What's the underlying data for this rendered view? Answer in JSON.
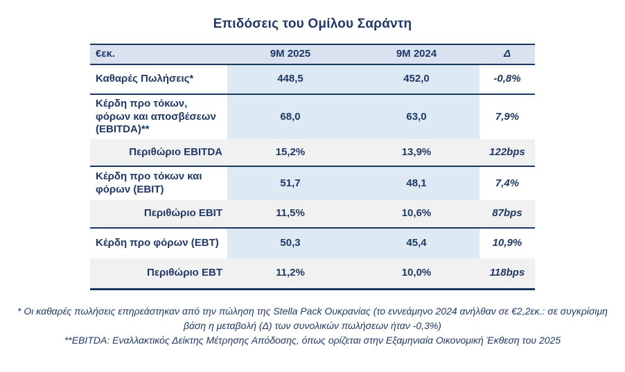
{
  "title": "Επιδόσεις του Ομίλου Σαράντη",
  "table": {
    "columns": [
      "€εκ.",
      "9M 2025",
      "9M 2024",
      "Δ"
    ],
    "rows": [
      {
        "label": "Καθαρές Πωλήσεις*",
        "v2025": "448,5",
        "v2024": "452,0",
        "delta": "-0,8%",
        "type": "data"
      },
      {
        "label": "Κέρδη προ τόκων, φόρων και αποσβέσεων (EBITDA)**",
        "v2025": "68,0",
        "v2024": "63,0",
        "delta": "7,9%",
        "type": "data"
      },
      {
        "label": "Περιθώριο EBITDA",
        "v2025": "15,2%",
        "v2024": "13,9%",
        "delta": "122bps",
        "type": "margin"
      },
      {
        "label": "Κέρδη προ τόκων και φόρων (EBIT)",
        "v2025": "51,7",
        "v2024": "48,1",
        "delta": "7,4%",
        "type": "data"
      },
      {
        "label": "Περιθώριο EBIT",
        "v2025": "11,5%",
        "v2024": "10,6%",
        "delta": "87bps",
        "type": "margin"
      },
      {
        "label": "Κέρδη προ φόρων (EBT)",
        "v2025": "50,3",
        "v2024": "45,4",
        "delta": "10,9%",
        "type": "data"
      },
      {
        "label": "Περιθώριο EBT",
        "v2025": "11,2%",
        "v2024": "10,0%",
        "delta": "118bps",
        "type": "margin"
      }
    ]
  },
  "footnotes": {
    "note1": "* Οι καθαρές πωλήσεις επηρεάστηκαν από την πώληση της Stella Pack Ουκρανίας (το εννεάμηνο 2024 ανήλθαν σε €2,2εκ.: σε συγκρίσιμη βάση η μεταβολή (Δ) των συνολικών πωλήσεων ήταν -0,3%)",
    "note2": "**EBITDA: Εναλλακτικός Δείκτης Μέτρησης Απόδοσης, όπως ορίζεται στην Εξαμηνιαία Οικονομική Έκθεση του 2025"
  },
  "colors": {
    "navy_text": "#1f3864",
    "border_navy": "#17375e",
    "header_bg": "#d9e2ee",
    "value_cell_blue": "#dde9f3",
    "margin_row_gray": "#f1f1f1",
    "page_bg": "#ffffff"
  }
}
